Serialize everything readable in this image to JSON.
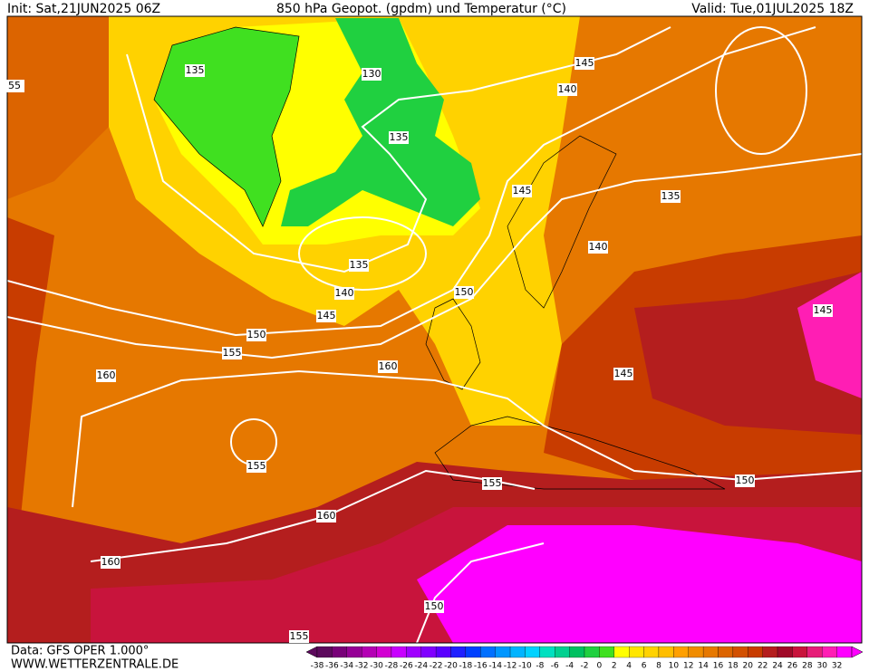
{
  "header": {
    "init": "Init: Sat,21JUN2025 06Z",
    "title": "850 hPa Geopot. (gpdm) und Temperatur (°C)",
    "valid": "Valid: Tue,01JUL2025 18Z"
  },
  "footer": {
    "data_source": "Data: GFS OPER 1.000°",
    "website": "WWW.WETTERZENTRALE.DE"
  },
  "contour_labels": [
    135,
    130,
    135,
    145,
    140,
    145,
    135,
    140,
    135,
    140,
    150,
    145,
    150,
    155,
    160,
    160,
    155,
    160,
    145,
    150,
    155,
    160,
    150,
    155,
    145,
    55
  ],
  "colorbar": {
    "values": [
      -38,
      -36,
      -34,
      -32,
      -30,
      -28,
      -26,
      -24,
      -22,
      -20,
      -18,
      -16,
      -14,
      -12,
      -10,
      -8,
      -6,
      -4,
      -2,
      0,
      2,
      4,
      6,
      8,
      10,
      12,
      14,
      16,
      18,
      20,
      22,
      24,
      26,
      28,
      30,
      32
    ],
    "colors": [
      "#5c0a5c",
      "#780078",
      "#960096",
      "#b400b4",
      "#d200d2",
      "#c800ff",
      "#a000ff",
      "#8000ff",
      "#5a00ff",
      "#2020ff",
      "#0040ff",
      "#0070ff",
      "#0096ff",
      "#00b4ff",
      "#00d2ff",
      "#00e0c0",
      "#00d090",
      "#00c060",
      "#20d040",
      "#40e020",
      "#ffff00",
      "#ffe600",
      "#ffd200",
      "#ffbe00",
      "#ffa000",
      "#f08c00",
      "#e67800",
      "#dc6400",
      "#d25000",
      "#c83c00",
      "#b41e1e",
      "#a00a28",
      "#c8143c",
      "#e61e78",
      "#ff1eb4",
      "#ff00ff"
    ]
  }
}
